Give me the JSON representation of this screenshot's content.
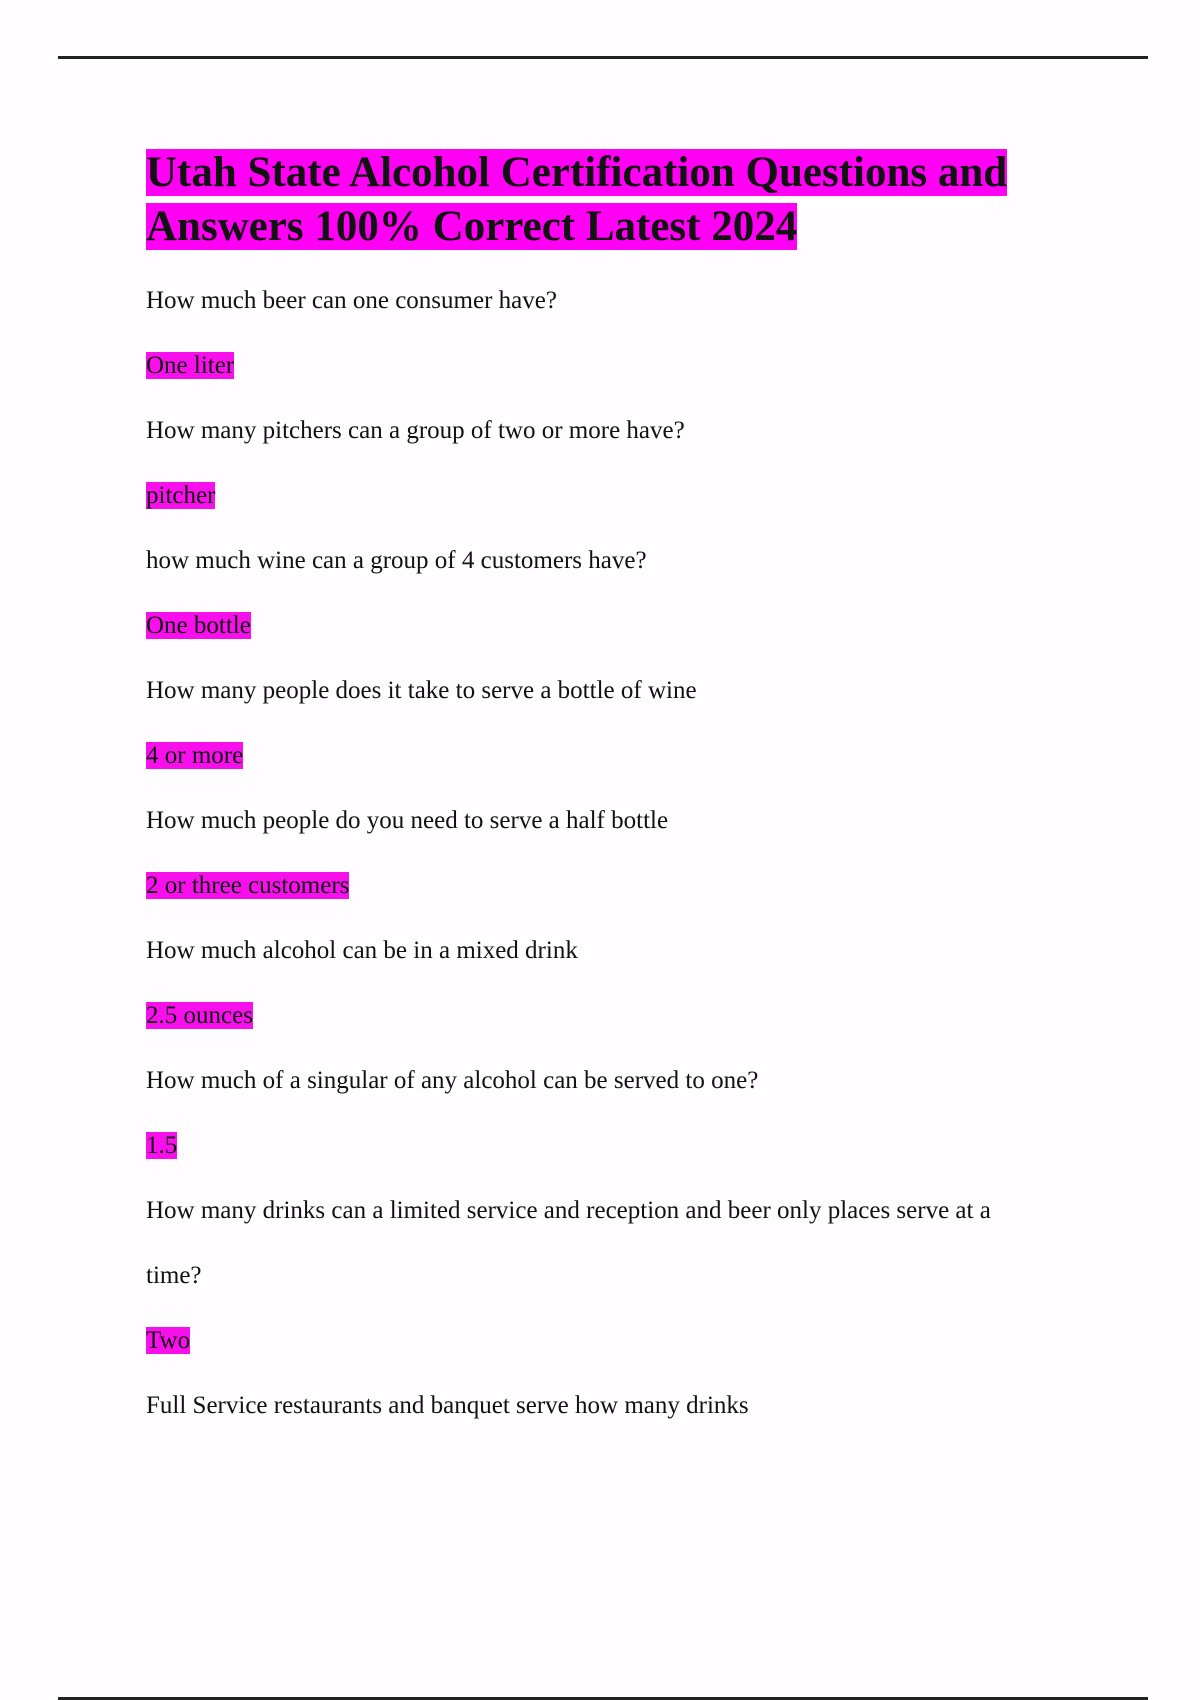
{
  "document": {
    "title": "Utah State Alcohol Certification Questions and Answers 100% Correct Latest 2024",
    "highlight_color": "#ff00f5",
    "items": [
      {
        "question": "How much beer can one consumer have?",
        "answer": "One liter"
      },
      {
        "question": "How many pitchers can a group of two or more have?",
        "answer": "pitcher"
      },
      {
        "question": "how much wine can a group of 4 customers have?",
        "answer": "One bottle"
      },
      {
        "question": "How many people does it take to serve a bottle of wine",
        "answer": "4 or more"
      },
      {
        "question": "How much people do you need to serve a half bottle",
        "answer": "2 or three customers"
      },
      {
        "question": "How much alcohol can be in a mixed drink",
        "answer": "2.5 ounces"
      },
      {
        "question": "How much of a singular of any alcohol can be served to one?",
        "answer": "1.5"
      },
      {
        "question": "How many drinks can a limited service and reception and beer only places serve at a time?",
        "answer": "Two"
      },
      {
        "question": "Full Service restaurants and banquet serve how many drinks"
      }
    ]
  }
}
